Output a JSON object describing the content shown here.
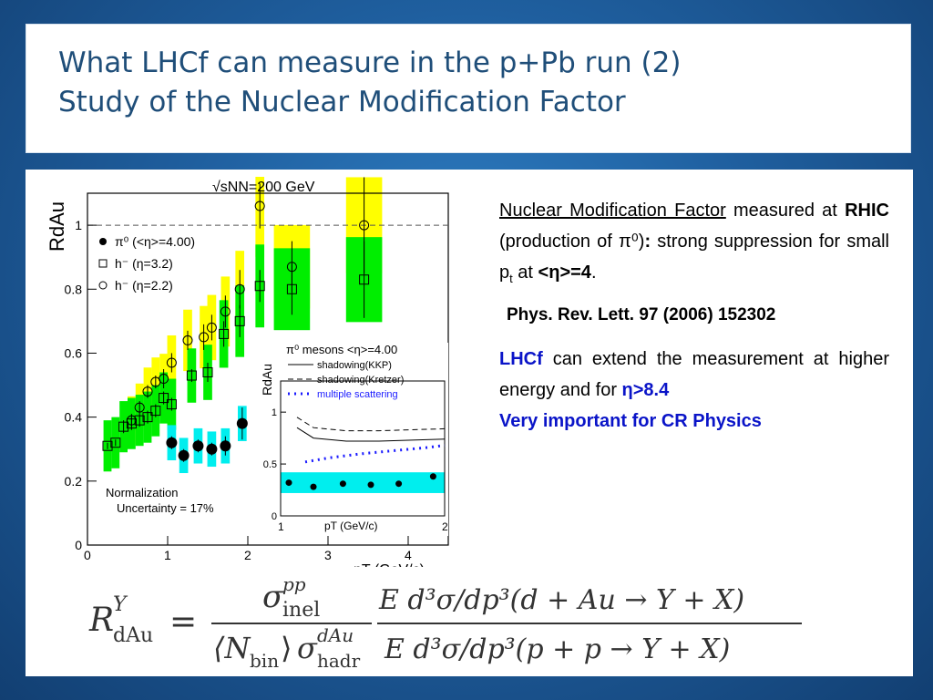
{
  "title": {
    "line1": "What LHCf can measure in the p+Pb run (2)",
    "line2": "Study of the Nuclear Modification Factor"
  },
  "text": {
    "p1_underline": "Nuclear Modification Factor",
    "p1_measured": " measured at ",
    "p1_rhic": "RHIC",
    "p1_production": " (production of ",
    "p1_pi": "π⁰",
    "p1_close": ")",
    "p1_colon": ":",
    "p1_rest": " strong suppression for small p",
    "p1_sub": "t",
    "p1_at": " at ",
    "p1_eta": "<η>=4",
    "p1_end": ".",
    "reference": "Phys. Rev. Lett. 97 (2006) 152302",
    "p2_lhcf": "LHCf",
    "p2_rest": " can extend the measurement at higher energy and for ",
    "p2_eta": "η>8.4",
    "p2_line3": "Very important for CR Physics"
  },
  "colors": {
    "title": "#1f4e79",
    "accent_blue": "#0a14c8",
    "band_yellow": "#ffff00",
    "band_green": "#00ee00",
    "band_cyan": "#00eeee"
  },
  "chart_data": [
    {
      "type": "scatter",
      "energy_label": "√sNN=200 GeV",
      "ylabel": "RdAu",
      "xlabel": "pT (GeV/c)",
      "xlim": [
        0,
        4.5
      ],
      "ylim": [
        0,
        1.1
      ],
      "xticks": [
        "0",
        "1",
        "2",
        "3",
        "4"
      ],
      "yticks": [
        "0",
        "0.2",
        "0.4",
        "0.6",
        "0.8",
        "1"
      ],
      "reference_line": 1,
      "note_line1": "Normalization",
      "note_line2": "Uncertainty = 17%",
      "legend": [
        {
          "marker": "filled-circle",
          "label": "π⁰ (<η>=4.00)"
        },
        {
          "marker": "open-square",
          "label": "h⁻ (η=3.2)"
        },
        {
          "marker": "open-circle",
          "label": "h⁻ (η=2.2)"
        }
      ],
      "series": [
        {
          "name": "π⁰ (<η>=4.00)",
          "band": "cyan",
          "x": [
            1.05,
            1.2,
            1.38,
            1.55,
            1.72,
            1.93
          ],
          "y": [
            0.32,
            0.28,
            0.31,
            0.3,
            0.31,
            0.38
          ],
          "err": [
            0.02,
            0.02,
            0.02,
            0.02,
            0.03,
            0.05
          ]
        },
        {
          "name": "h⁻ (η=3.2)",
          "band": "green",
          "x": [
            0.25,
            0.35,
            0.45,
            0.55,
            0.65,
            0.75,
            0.85,
            0.95,
            1.05,
            1.3,
            1.5,
            1.7,
            1.9,
            2.15,
            2.55,
            3.45
          ],
          "y": [
            0.31,
            0.32,
            0.37,
            0.38,
            0.39,
            0.4,
            0.42,
            0.46,
            0.44,
            0.53,
            0.54,
            0.66,
            0.7,
            0.81,
            0.8,
            0.83
          ],
          "err": [
            0.01,
            0.01,
            0.02,
            0.02,
            0.02,
            0.02,
            0.02,
            0.02,
            0.02,
            0.02,
            0.03,
            0.04,
            0.05,
            0.05,
            0.08,
            0.12
          ]
        },
        {
          "name": "h⁻ (η=2.2)",
          "band": "yellow",
          "x": [
            0.55,
            0.65,
            0.75,
            0.85,
            0.95,
            1.05,
            1.25,
            1.45,
            1.55,
            1.72,
            1.9,
            2.15,
            2.55,
            3.45
          ],
          "y": [
            0.39,
            0.43,
            0.48,
            0.51,
            0.52,
            0.57,
            0.64,
            0.65,
            0.68,
            0.73,
            0.8,
            1.06,
            0.87,
            1.0
          ],
          "err": [
            0.02,
            0.02,
            0.02,
            0.02,
            0.03,
            0.03,
            0.03,
            0.04,
            0.04,
            0.05,
            0.06,
            0.07,
            0.08,
            0.15
          ]
        }
      ]
    },
    {
      "type": "line",
      "title": "π⁰ mesons <η>=4.00",
      "ylabel": "RdAu",
      "xlabel": "pT (GeV/c)",
      "xlim": [
        1,
        2
      ],
      "ylim": [
        0,
        1.3
      ],
      "xticks": [
        "1",
        "2"
      ],
      "yticks": [
        "0",
        "0.5",
        "1"
      ],
      "legend": [
        {
          "style": "solid",
          "label": "shadowing(KKP)"
        },
        {
          "style": "dashed",
          "label": "shadowing(Kretzer)"
        },
        {
          "style": "dotted",
          "label": "multiple scattering"
        }
      ],
      "series": [
        {
          "name": "shadowing(KKP)",
          "x": [
            1.1,
            1.2,
            1.4,
            1.6,
            1.8,
            2.0
          ],
          "y": [
            0.85,
            0.75,
            0.72,
            0.72,
            0.73,
            0.74
          ]
        },
        {
          "name": "shadowing(Kretzer)",
          "x": [
            1.1,
            1.2,
            1.4,
            1.6,
            1.8,
            2.0
          ],
          "y": [
            0.95,
            0.85,
            0.82,
            0.82,
            0.83,
            0.84
          ]
        },
        {
          "name": "multiple scattering",
          "x": [
            1.15,
            1.3,
            1.5,
            1.7,
            1.9,
            2.0
          ],
          "y": [
            0.52,
            0.56,
            0.6,
            0.63,
            0.66,
            0.68
          ]
        },
        {
          "name": "π⁰ (<η>=4.00)",
          "points": true,
          "x": [
            1.05,
            1.2,
            1.38,
            1.55,
            1.72,
            1.93
          ],
          "y": [
            0.32,
            0.28,
            0.31,
            0.3,
            0.31,
            0.38
          ]
        }
      ]
    }
  ],
  "formula": {
    "lhs": "R",
    "lhs_sup": "Y",
    "lhs_sub": "dAu",
    "equals": "=",
    "sigma": "σ",
    "pp_sup": "pp",
    "inel_sub": "inel",
    "n_bin": "⟨N",
    "bin_sub": "bin",
    "rangle": "⟩",
    "dAu_sup": "dAu",
    "hadr_sub": "hadr",
    "num2": "E d³σ/dp³(d + Au → Y + X)",
    "den2": "E d³σ/dp³(p + p → Y + X)"
  }
}
